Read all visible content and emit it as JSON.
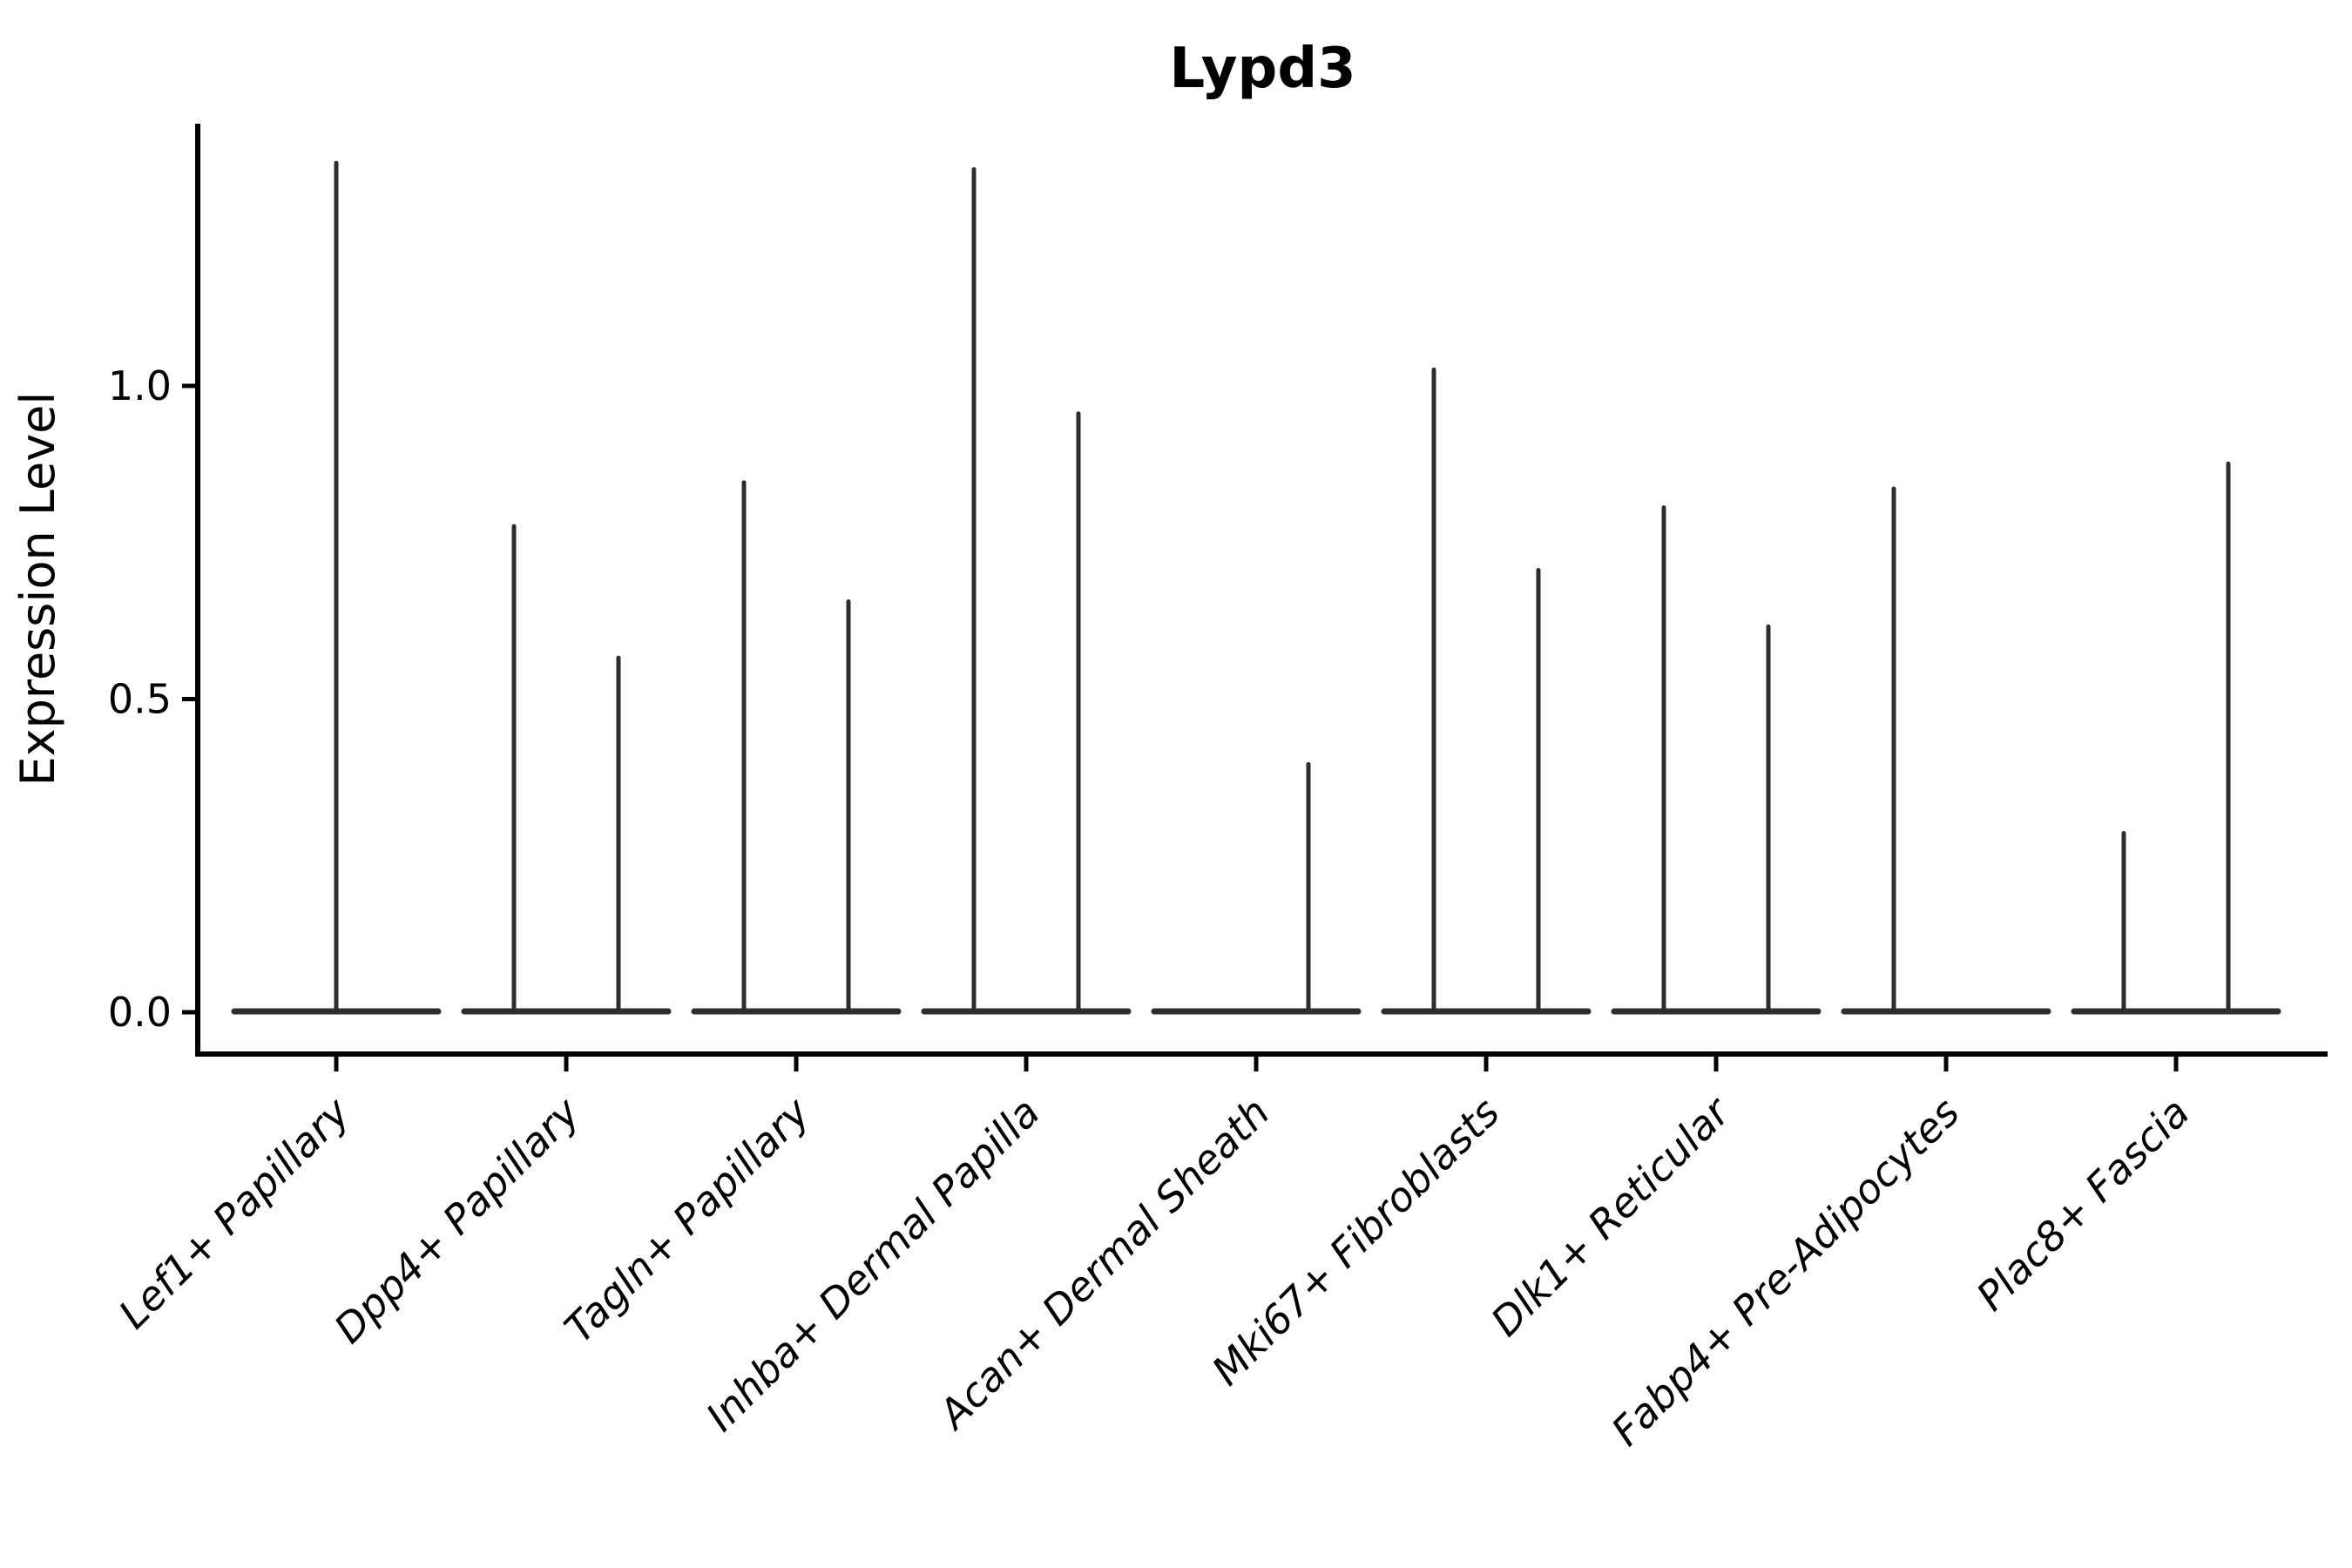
{
  "figure": {
    "title": "Lypd3"
  },
  "chart_data": {
    "type": "violin",
    "title": "Lypd3",
    "xlabel": "",
    "ylabel": "Expression Level",
    "ytick_labels": [
      "0.0",
      "0.5",
      "1.0"
    ],
    "ytick_values": [
      0.0,
      0.5,
      1.0
    ],
    "ylim": [
      -0.067,
      1.42
    ],
    "grid": false,
    "legend": "none",
    "categories": [
      "Lef1+ Papillary",
      "Dpp4+ Papillary",
      "Tagln+ Papillary",
      "Inhba+ Dermal Papilla",
      "Acan+ Dermal Sheath",
      "Mki67+ Fibroblasts",
      "Dlk1+ Reticular",
      "Fabp4+ Pre-Adipocytes",
      "Plac8+ Fascia"
    ],
    "violin_style": "mostly-zero expression: wide flat base at 0 with thin vertical spike to max; two dodged violins per category unless only one group present (then centered)",
    "violins": [
      {
        "category": "Lef1+ Papillary",
        "groups": [
          {
            "pos": "center",
            "max": 1.36
          }
        ]
      },
      {
        "category": "Dpp4+ Papillary",
        "groups": [
          {
            "pos": "left",
            "max": 0.78
          },
          {
            "pos": "right",
            "max": 0.57
          }
        ]
      },
      {
        "category": "Tagln+ Papillary",
        "groups": [
          {
            "pos": "left",
            "max": 0.85
          },
          {
            "pos": "right",
            "max": 0.66
          }
        ]
      },
      {
        "category": "Inhba+ Dermal Papilla",
        "groups": [
          {
            "pos": "left",
            "max": 1.35
          },
          {
            "pos": "right",
            "max": 0.96
          }
        ]
      },
      {
        "category": "Acan+ Dermal Sheath",
        "groups": [
          {
            "pos": "left",
            "max": 0.0
          },
          {
            "pos": "right",
            "max": 0.4
          }
        ]
      },
      {
        "category": "Mki67+ Fibroblasts",
        "groups": [
          {
            "pos": "left",
            "max": 1.03
          },
          {
            "pos": "right",
            "max": 0.71
          }
        ]
      },
      {
        "category": "Dlk1+ Reticular",
        "groups": [
          {
            "pos": "left",
            "max": 0.81
          },
          {
            "pos": "right",
            "max": 0.62
          }
        ]
      },
      {
        "category": "Fabp4+ Pre-Adipocytes",
        "groups": [
          {
            "pos": "left",
            "max": 0.84
          },
          {
            "pos": "right",
            "max": 0.0
          }
        ]
      },
      {
        "category": "Plac8+ Fascia",
        "groups": [
          {
            "pos": "left",
            "max": 0.29
          },
          {
            "pos": "right",
            "max": 0.88
          }
        ]
      }
    ],
    "colors": {
      "violin": "#2d2d2d",
      "axis": "#000000",
      "text": "#000000",
      "background": "#ffffff"
    }
  }
}
